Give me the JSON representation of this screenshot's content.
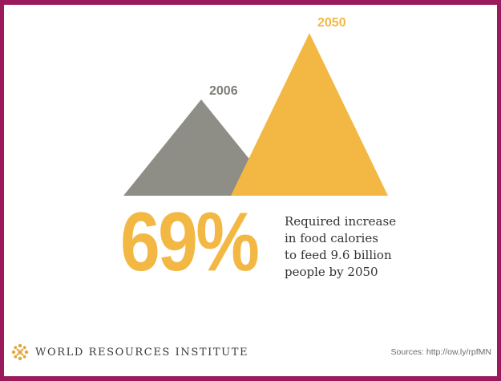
{
  "colors": {
    "frame": "#9a1a5c",
    "gray": "#8e8d86",
    "gold": "#f2b843",
    "gray_label": "#7d7c76",
    "gold_label": "#f2b843"
  },
  "chart_data": {
    "type": "area",
    "series": [
      {
        "name": "2006",
        "values": [
          100
        ]
      },
      {
        "name": "2050",
        "values": [
          169
        ]
      }
    ],
    "annotation": {
      "value": "69%",
      "lines": [
        "Required increase",
        "in food calories",
        "to feed 9.6 billion",
        "people by 2050"
      ]
    }
  },
  "footer": {
    "organization": "WORLD RESOURCES INSTITUTE",
    "logo_icon": "wri-logo-icon",
    "sources": "Sources: http://ow.ly/rpfMN"
  }
}
